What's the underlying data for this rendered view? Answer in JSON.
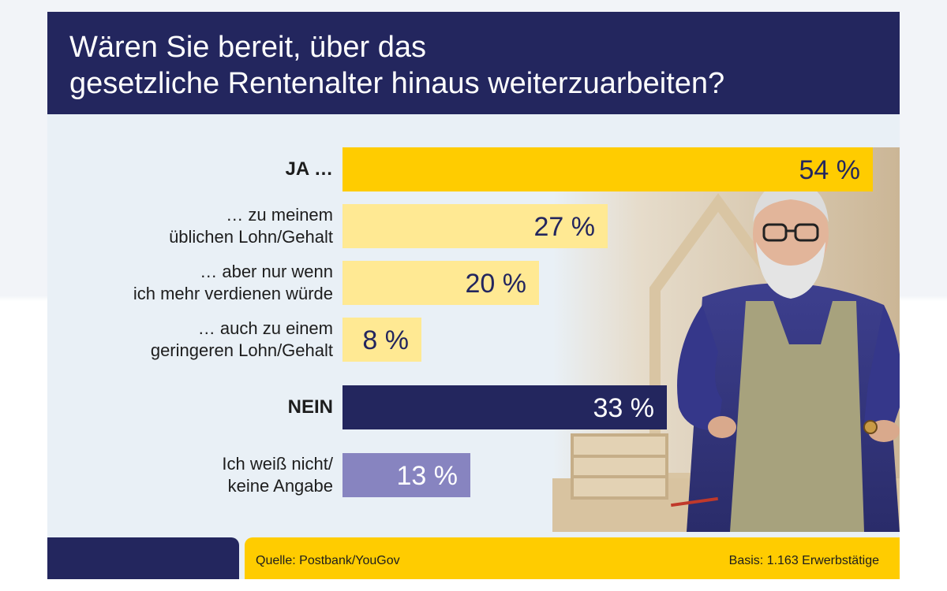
{
  "title": "Wären Sie bereit, über das\ngesetzliche Rentenalter hinaus weiterzuarbeiten?",
  "source": "Quelle: Postbank/YouGov",
  "basis": "Basis: 1.163 Erwerbstätige",
  "colors": {
    "navy": "#23265e",
    "yellow": "#ffcc00",
    "light_yellow": "#ffe993",
    "purple": "#8784c0"
  },
  "chart_data": {
    "type": "bar",
    "orientation": "horizontal",
    "categories": [
      "JA …",
      "… zu meinem\nüblichen Lohn/Gehalt",
      "… aber nur wenn\nich mehr verdienen würde",
      "… auch zu einem\ngeringeren Lohn/Gehalt",
      "NEIN",
      "Ich weiß nicht/\nkeine Angabe"
    ],
    "values": [
      54,
      27,
      20,
      8,
      33,
      13
    ],
    "value_labels": [
      "54 %",
      "27 %",
      "20 %",
      "8 %",
      "33 %",
      "13 %"
    ],
    "bar_colors": [
      "#ffcc00",
      "#ffe993",
      "#ffe993",
      "#ffe993",
      "#23265e",
      "#8784c0"
    ],
    "label_colors": [
      "#23265e",
      "#23265e",
      "#23265e",
      "#23265e",
      "#ffffff",
      "#ffffff"
    ],
    "bold_categories": [
      0,
      4
    ],
    "xlim": [
      0,
      54
    ],
    "unit": "%"
  }
}
